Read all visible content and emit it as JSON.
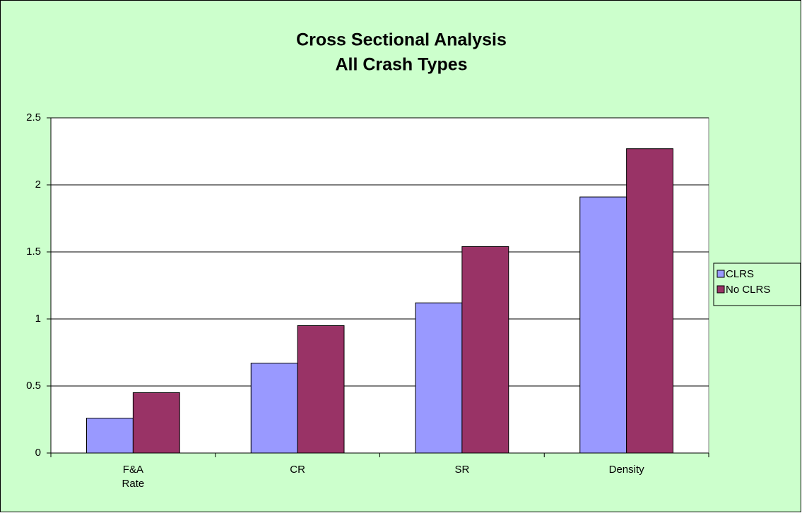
{
  "chart_data": {
    "type": "bar",
    "title": [
      "Cross Sectional Analysis",
      "All Crash Types"
    ],
    "categories": [
      "F&A\nRate",
      "CR",
      "SR",
      "Density"
    ],
    "series": [
      {
        "name": "CLRS",
        "color": "#9999ff",
        "values": [
          0.26,
          0.67,
          1.12,
          1.91
        ]
      },
      {
        "name": "No CLRS",
        "color": "#993366",
        "values": [
          0.45,
          0.95,
          1.54,
          2.27
        ]
      }
    ],
    "ylim": [
      0,
      2.5
    ],
    "yticks": [
      0,
      0.5,
      1,
      1.5,
      2,
      2.5
    ],
    "grid": true,
    "legend": "right"
  }
}
